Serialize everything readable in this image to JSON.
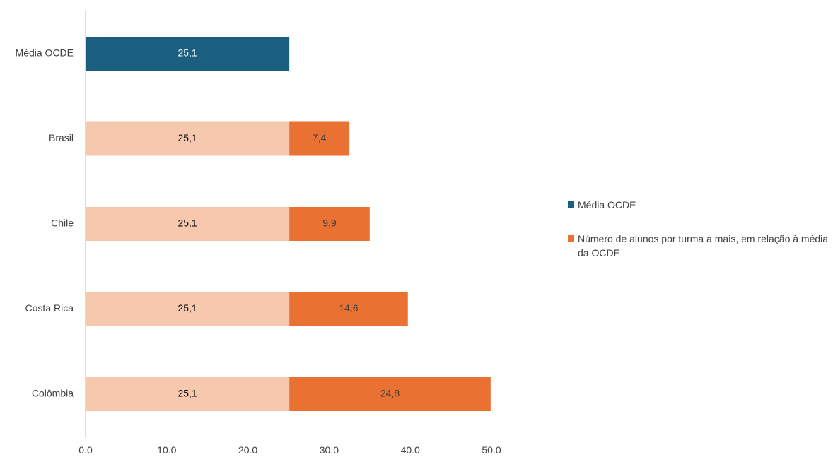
{
  "chart_data": {
    "type": "bar",
    "orientation": "horizontal",
    "stacked": true,
    "categories": [
      "Média OCDE",
      "Brasil",
      "Chile",
      "Costa Rica",
      "Colômbia"
    ],
    "series": [
      {
        "name": "Média OCDE",
        "values": [
          25.1,
          25.1,
          25.1,
          25.1,
          25.1
        ],
        "labels": [
          "25,1",
          "25,1",
          "25,1",
          "25,1",
          "25,1"
        ]
      },
      {
        "name": "Número de alunos por turma a mais, em relação à média da OCDE",
        "values": [
          0,
          7.4,
          9.9,
          14.6,
          24.8
        ],
        "labels": [
          "",
          "7,4",
          "9,9",
          "14,6",
          "24,8"
        ]
      }
    ],
    "xlim": [
      0,
      50
    ],
    "xticks": [
      0,
      10,
      20,
      30,
      40,
      50
    ],
    "xtick_labels": [
      "0.0",
      "10.0",
      "20.0",
      "30.0",
      "40.0",
      "50.0"
    ],
    "grid": false,
    "legend_position": "right",
    "title": "",
    "xlabel": "",
    "ylabel": ""
  },
  "colors": {
    "ocde_dark": "#1a5e80",
    "ocde_light": "#f6c8ae",
    "excess": "#e97132",
    "axis": "#d0d0d0",
    "text": "#404040"
  }
}
